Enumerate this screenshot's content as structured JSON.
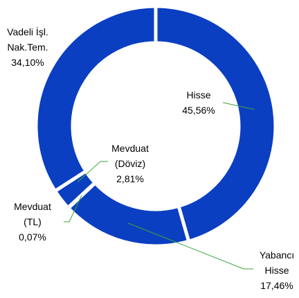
{
  "chart_data": {
    "type": "donut",
    "categories": [
      "Hisse",
      "Yabancı Hisse",
      "Mevduat (TL)",
      "Mevduat (Döviz)",
      "Vadeli İşl. Nak.Tem."
    ],
    "values": [
      45.56,
      17.46,
      0.07,
      2.81,
      34.1
    ],
    "value_labels": [
      "45,56%",
      "17,46%",
      "0,07%",
      "2,81%",
      "34,10%"
    ],
    "color": "#0b3fc1"
  }
}
